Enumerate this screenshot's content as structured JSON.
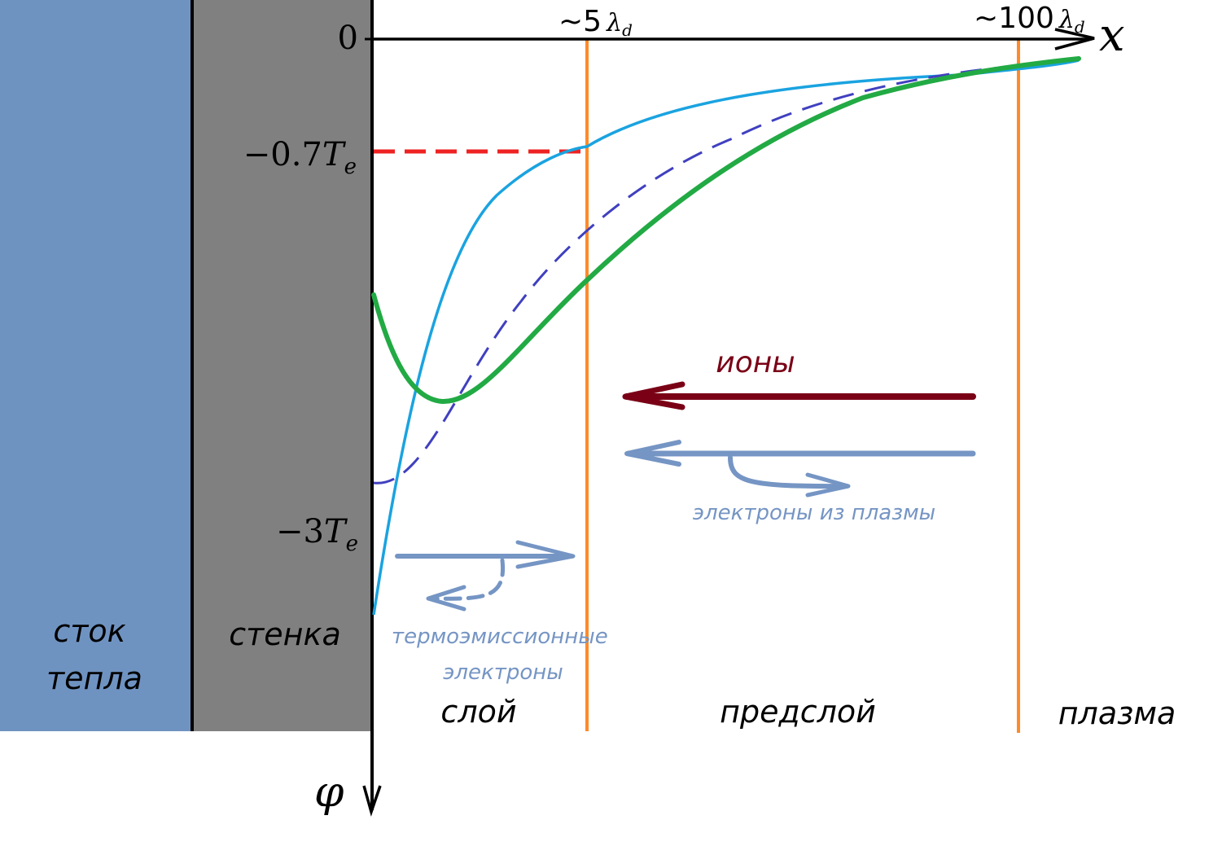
{
  "regions": {
    "heat_sink": [
      "сток",
      "тепла"
    ],
    "wall": "стенка",
    "sheath": "слой",
    "presheath": "предслой",
    "plasma": "плазма"
  },
  "axes": {
    "x_symbol": "x",
    "phi_symbol": "φ",
    "zero": "0",
    "level_07": {
      "prefix": "−0.7",
      "sym": "T",
      "sub": "e"
    },
    "level_3": {
      "prefix": "−3",
      "sym": "T",
      "sub": "e"
    }
  },
  "markers": {
    "m5": {
      "prefix": "~5",
      "sym": "λ",
      "sub": "d"
    },
    "m100": {
      "prefix": "~100",
      "sym": "λ",
      "sub": "d"
    }
  },
  "annotations": {
    "ions": "ионы",
    "plasma_electrons": "электроны из плазмы",
    "thermo_electrons": [
      "термоэмиссионные",
      "электроны"
    ]
  },
  "colors": {
    "heat_sink": "#6f93c1",
    "wall": "#808080",
    "boundary_lines": "#ff8a2a",
    "curve_light_blue": "#1aa3e0",
    "curve_dashed_blue": "#4040c0",
    "curve_green": "#22aa44",
    "level_dashed_red": "#ee2222",
    "ions_arrow": "#7a0016",
    "electron_arrows": "#7595c4"
  }
}
